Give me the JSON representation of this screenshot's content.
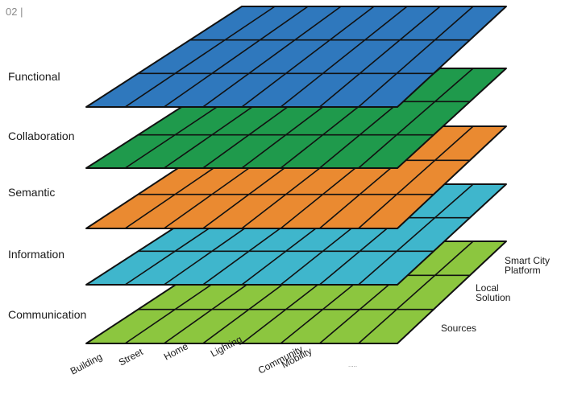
{
  "figure_number": "02 |",
  "layers": [
    {
      "label": "Functional",
      "color": "#2f78bd"
    },
    {
      "label": "Collaboration",
      "color": "#1f9a4c"
    },
    {
      "label": "Semantic",
      "color": "#ea8a31"
    },
    {
      "label": "Information",
      "color": "#3fb6cc"
    },
    {
      "label": "Communication",
      "color": "#8cc63f"
    }
  ],
  "domains": [
    "Building",
    "Street",
    "Home",
    "Lighting",
    "Community",
    "Mobility"
  ],
  "levels": [
    "Smart City Platform",
    "Local Solution",
    "Sources"
  ],
  "ellipsis": "....."
}
